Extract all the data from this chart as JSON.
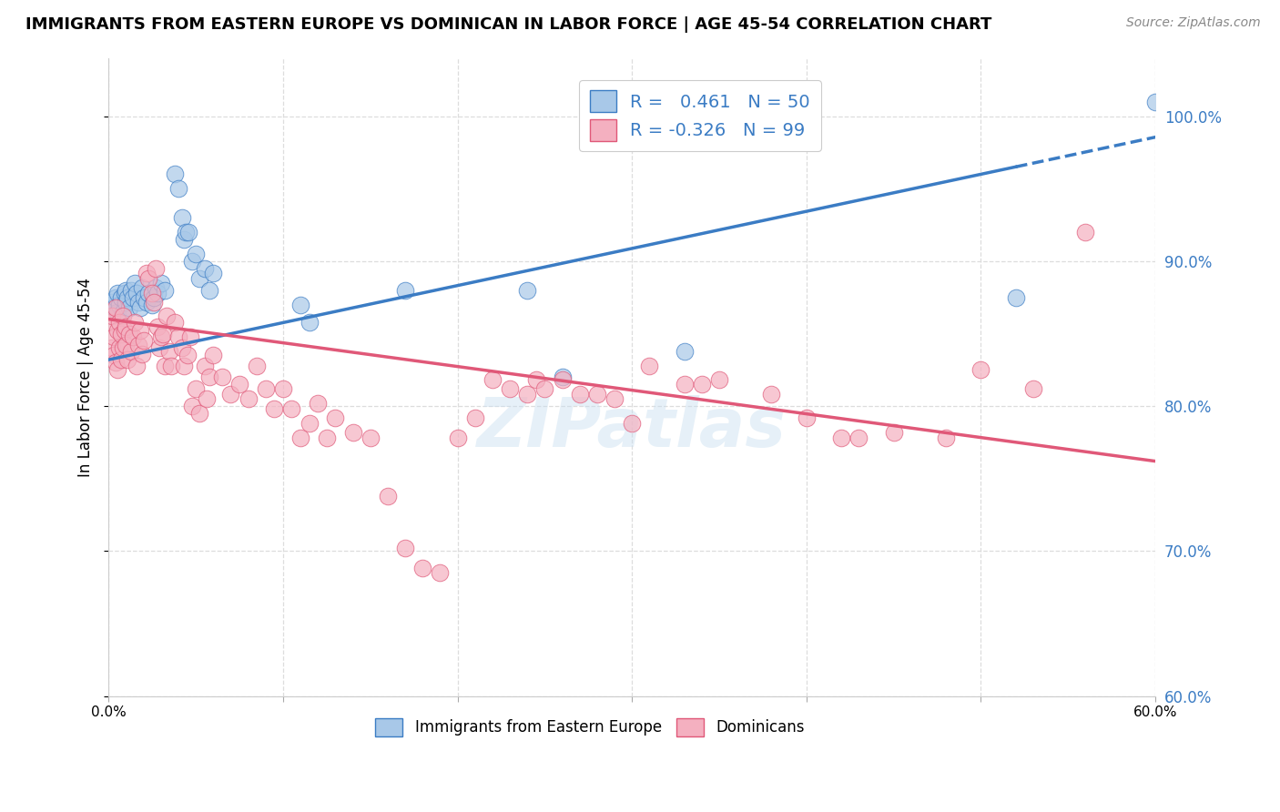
{
  "title": "IMMIGRANTS FROM EASTERN EUROPE VS DOMINICAN IN LABOR FORCE | AGE 45-54 CORRELATION CHART",
  "source": "Source: ZipAtlas.com",
  "ylabel": "In Labor Force | Age 45-54",
  "xlim": [
    0.0,
    0.6
  ],
  "ylim": [
    0.6,
    1.04
  ],
  "right_yticks": [
    0.6,
    0.7,
    0.8,
    0.9,
    1.0
  ],
  "right_ytick_labels": [
    "60.0%",
    "70.0%",
    "80.0%",
    "90.0%",
    "100.0%"
  ],
  "xticks": [
    0.0,
    0.1,
    0.2,
    0.3,
    0.4,
    0.5,
    0.6
  ],
  "xtick_labels": [
    "0.0%",
    "",
    "",
    "",
    "",
    "",
    "60.0%"
  ],
  "blue_R": 0.461,
  "blue_N": 50,
  "pink_R": -0.326,
  "pink_N": 99,
  "blue_color": "#A8C8E8",
  "pink_color": "#F4B0C0",
  "blue_line_color": "#3B7CC4",
  "pink_line_color": "#E05878",
  "blue_scatter": [
    [
      0.001,
      0.87
    ],
    [
      0.002,
      0.872
    ],
    [
      0.003,
      0.868
    ],
    [
      0.004,
      0.875
    ],
    [
      0.005,
      0.878
    ],
    [
      0.005,
      0.865
    ],
    [
      0.006,
      0.87
    ],
    [
      0.007,
      0.875
    ],
    [
      0.008,
      0.865
    ],
    [
      0.009,
      0.878
    ],
    [
      0.01,
      0.88
    ],
    [
      0.01,
      0.872
    ],
    [
      0.011,
      0.875
    ],
    [
      0.012,
      0.868
    ],
    [
      0.013,
      0.88
    ],
    [
      0.014,
      0.875
    ],
    [
      0.015,
      0.885
    ],
    [
      0.016,
      0.878
    ],
    [
      0.017,
      0.872
    ],
    [
      0.018,
      0.868
    ],
    [
      0.019,
      0.882
    ],
    [
      0.02,
      0.875
    ],
    [
      0.022,
      0.872
    ],
    [
      0.023,
      0.878
    ],
    [
      0.025,
      0.87
    ],
    [
      0.026,
      0.875
    ],
    [
      0.027,
      0.882
    ],
    [
      0.028,
      0.878
    ],
    [
      0.03,
      0.885
    ],
    [
      0.032,
      0.88
    ],
    [
      0.038,
      0.96
    ],
    [
      0.04,
      0.95
    ],
    [
      0.042,
      0.93
    ],
    [
      0.043,
      0.915
    ],
    [
      0.044,
      0.92
    ],
    [
      0.046,
      0.92
    ],
    [
      0.048,
      0.9
    ],
    [
      0.05,
      0.905
    ],
    [
      0.052,
      0.888
    ],
    [
      0.055,
      0.895
    ],
    [
      0.058,
      0.88
    ],
    [
      0.06,
      0.892
    ],
    [
      0.11,
      0.87
    ],
    [
      0.115,
      0.858
    ],
    [
      0.17,
      0.88
    ],
    [
      0.24,
      0.88
    ],
    [
      0.26,
      0.82
    ],
    [
      0.33,
      0.838
    ],
    [
      0.52,
      0.875
    ],
    [
      0.6,
      1.01
    ]
  ],
  "pink_scatter": [
    [
      0.001,
      0.858
    ],
    [
      0.002,
      0.862
    ],
    [
      0.002,
      0.84
    ],
    [
      0.003,
      0.848
    ],
    [
      0.003,
      0.835
    ],
    [
      0.004,
      0.868
    ],
    [
      0.004,
      0.83
    ],
    [
      0.005,
      0.852
    ],
    [
      0.005,
      0.825
    ],
    [
      0.006,
      0.858
    ],
    [
      0.006,
      0.84
    ],
    [
      0.007,
      0.85
    ],
    [
      0.007,
      0.832
    ],
    [
      0.008,
      0.862
    ],
    [
      0.008,
      0.84
    ],
    [
      0.009,
      0.852
    ],
    [
      0.01,
      0.842
    ],
    [
      0.01,
      0.855
    ],
    [
      0.011,
      0.832
    ],
    [
      0.012,
      0.85
    ],
    [
      0.013,
      0.838
    ],
    [
      0.014,
      0.848
    ],
    [
      0.015,
      0.858
    ],
    [
      0.016,
      0.828
    ],
    [
      0.017,
      0.842
    ],
    [
      0.018,
      0.852
    ],
    [
      0.019,
      0.836
    ],
    [
      0.02,
      0.845
    ],
    [
      0.022,
      0.892
    ],
    [
      0.023,
      0.888
    ],
    [
      0.025,
      0.878
    ],
    [
      0.026,
      0.872
    ],
    [
      0.027,
      0.895
    ],
    [
      0.028,
      0.855
    ],
    [
      0.029,
      0.84
    ],
    [
      0.03,
      0.848
    ],
    [
      0.031,
      0.85
    ],
    [
      0.032,
      0.828
    ],
    [
      0.033,
      0.862
    ],
    [
      0.035,
      0.838
    ],
    [
      0.036,
      0.828
    ],
    [
      0.038,
      0.858
    ],
    [
      0.04,
      0.848
    ],
    [
      0.042,
      0.84
    ],
    [
      0.043,
      0.828
    ],
    [
      0.045,
      0.835
    ],
    [
      0.047,
      0.848
    ],
    [
      0.048,
      0.8
    ],
    [
      0.05,
      0.812
    ],
    [
      0.052,
      0.795
    ],
    [
      0.055,
      0.828
    ],
    [
      0.056,
      0.805
    ],
    [
      0.058,
      0.82
    ],
    [
      0.06,
      0.835
    ],
    [
      0.065,
      0.82
    ],
    [
      0.07,
      0.808
    ],
    [
      0.075,
      0.815
    ],
    [
      0.08,
      0.805
    ],
    [
      0.085,
      0.828
    ],
    [
      0.09,
      0.812
    ],
    [
      0.095,
      0.798
    ],
    [
      0.1,
      0.812
    ],
    [
      0.105,
      0.798
    ],
    [
      0.11,
      0.778
    ],
    [
      0.115,
      0.788
    ],
    [
      0.12,
      0.802
    ],
    [
      0.125,
      0.778
    ],
    [
      0.13,
      0.792
    ],
    [
      0.14,
      0.782
    ],
    [
      0.15,
      0.778
    ],
    [
      0.16,
      0.738
    ],
    [
      0.17,
      0.702
    ],
    [
      0.18,
      0.688
    ],
    [
      0.19,
      0.685
    ],
    [
      0.2,
      0.778
    ],
    [
      0.21,
      0.792
    ],
    [
      0.22,
      0.818
    ],
    [
      0.23,
      0.812
    ],
    [
      0.24,
      0.808
    ],
    [
      0.245,
      0.818
    ],
    [
      0.25,
      0.812
    ],
    [
      0.26,
      0.818
    ],
    [
      0.27,
      0.808
    ],
    [
      0.28,
      0.808
    ],
    [
      0.29,
      0.805
    ],
    [
      0.3,
      0.788
    ],
    [
      0.31,
      0.828
    ],
    [
      0.33,
      0.815
    ],
    [
      0.34,
      0.815
    ],
    [
      0.35,
      0.818
    ],
    [
      0.38,
      0.808
    ],
    [
      0.4,
      0.792
    ],
    [
      0.42,
      0.778
    ],
    [
      0.43,
      0.778
    ],
    [
      0.45,
      0.782
    ],
    [
      0.48,
      0.778
    ],
    [
      0.5,
      0.825
    ],
    [
      0.53,
      0.812
    ],
    [
      0.56,
      0.92
    ]
  ],
  "watermark": "ZIPatlas",
  "grid_color": "#DDDDDD"
}
